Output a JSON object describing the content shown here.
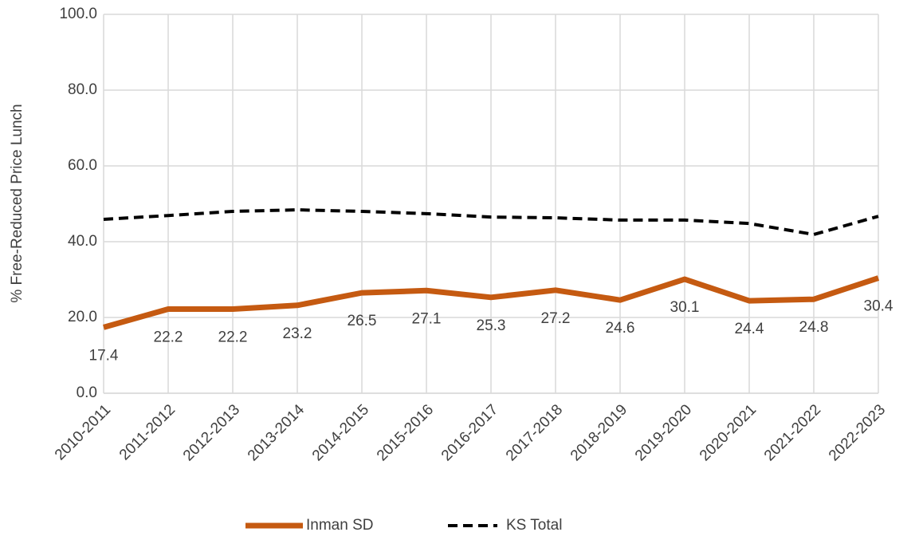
{
  "chart_data": {
    "type": "line",
    "y_axis_label": "% Free-Reduced Price Lunch",
    "categories": [
      "2010-2011",
      "2011-2012",
      "2012-2013",
      "2013-2014",
      "2014-2015",
      "2015-2016",
      "2016-2017",
      "2017-2018",
      "2018-2019",
      "2019-2020",
      "2020-2021",
      "2021-2022",
      "2022-2023"
    ],
    "series": [
      {
        "name": "Inman SD",
        "color": "#c55a11",
        "dash": "solid",
        "show_labels": true,
        "values": [
          17.4,
          22.2,
          22.2,
          23.2,
          26.5,
          27.1,
          25.3,
          27.2,
          24.6,
          30.1,
          24.4,
          24.8,
          30.4
        ]
      },
      {
        "name": "KS Total",
        "color": "#000000",
        "dash": "dashed",
        "show_labels": false,
        "values": [
          45.9,
          46.9,
          48.0,
          48.4,
          48.0,
          47.4,
          46.5,
          46.3,
          45.7,
          45.7,
          44.8,
          41.9,
          46.7
        ]
      }
    ],
    "ylim": [
      0,
      100
    ],
    "yticks": [
      {
        "value": 0,
        "label": "0.0"
      },
      {
        "value": 20,
        "label": "20.0"
      },
      {
        "value": 40,
        "label": "40.0"
      },
      {
        "value": 60,
        "label": "60.0"
      },
      {
        "value": 80,
        "label": "80.0"
      },
      {
        "value": 100,
        "label": "100.0"
      }
    ],
    "grid": true,
    "legend": "bottom"
  }
}
